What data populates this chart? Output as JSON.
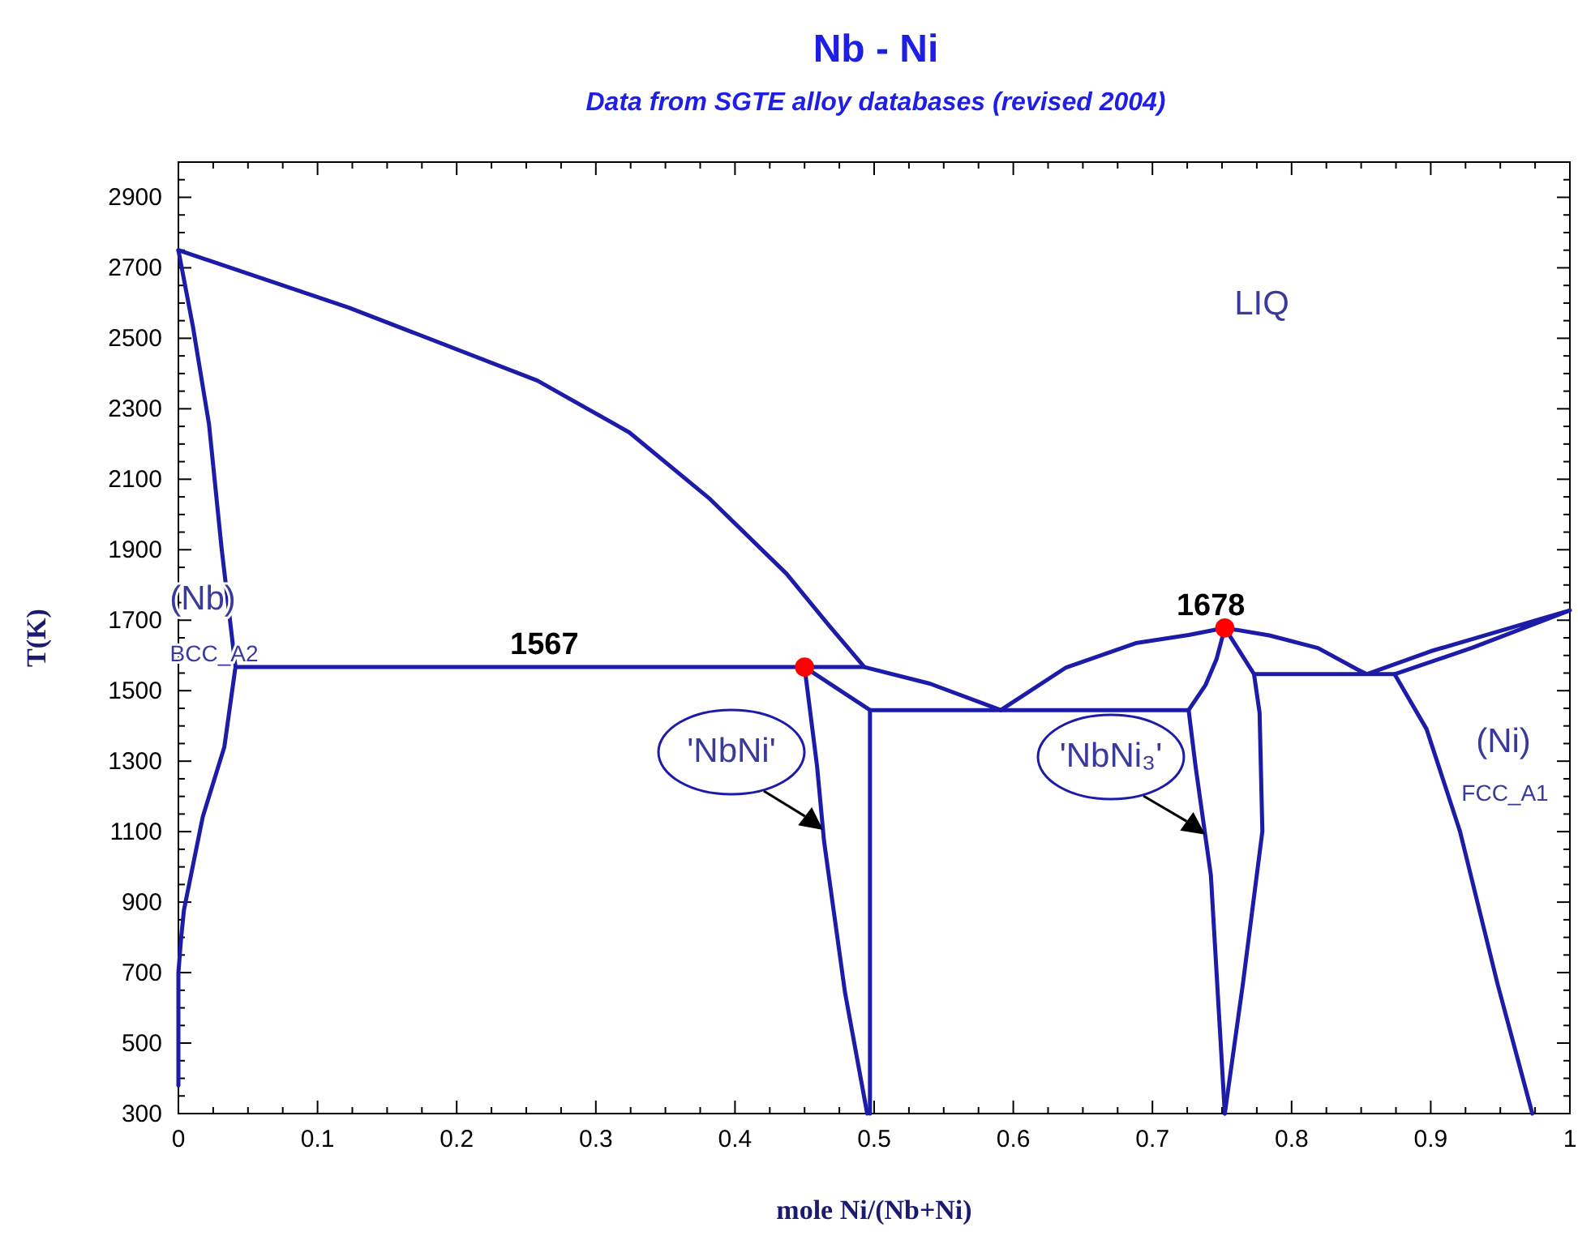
{
  "chart_data": {
    "type": "line",
    "title": "Nb - Ni",
    "subtitle": "Data from SGTE alloy databases (revised 2004)",
    "xlabel": "mole Ni/(Nb+Ni)",
    "ylabel": "T(K)",
    "xlim": [
      0,
      1
    ],
    "ylim": [
      300,
      3000
    ],
    "xticks": [
      0,
      {
        "value": 0.025,
        "label": null
      },
      {
        "value": 0.05,
        "label": null
      },
      {
        "value": 0.075,
        "label": null
      },
      0.1,
      {
        "value": 0.125,
        "label": null
      },
      {
        "value": 0.15,
        "label": null
      },
      {
        "value": 0.175,
        "label": null
      },
      0.2,
      {
        "value": 0.225,
        "label": null
      },
      {
        "value": 0.25,
        "label": null
      },
      {
        "value": 0.275,
        "label": null
      },
      0.3,
      {
        "value": 0.325,
        "label": null
      },
      {
        "value": 0.35,
        "label": null
      },
      {
        "value": 0.375,
        "label": null
      },
      0.4,
      {
        "value": 0.425,
        "label": null
      },
      {
        "value": 0.45,
        "label": null
      },
      {
        "value": 0.475,
        "label": null
      },
      0.5,
      {
        "value": 0.525,
        "label": null
      },
      {
        "value": 0.55,
        "label": null
      },
      {
        "value": 0.575,
        "label": null
      },
      0.6,
      {
        "value": 0.625,
        "label": null
      },
      {
        "value": 0.65,
        "label": null
      },
      {
        "value": 0.675,
        "label": null
      },
      0.7,
      {
        "value": 0.725,
        "label": null
      },
      {
        "value": 0.75,
        "label": null
      },
      {
        "value": 0.775,
        "label": null
      },
      0.8,
      {
        "value": 0.825,
        "label": null
      },
      {
        "value": 0.85,
        "label": null
      },
      {
        "value": 0.875,
        "label": null
      },
      0.9,
      {
        "value": 0.925,
        "label": null
      },
      {
        "value": 0.95,
        "label": null
      },
      {
        "value": 0.975,
        "label": null
      },
      1
    ],
    "yticks": [
      300,
      {
        "value": 350,
        "label": null
      },
      {
        "value": 400,
        "label": null
      },
      {
        "value": 450,
        "label": null
      },
      500,
      {
        "value": 550,
        "label": null
      },
      {
        "value": 600,
        "label": null
      },
      {
        "value": 650,
        "label": null
      },
      700,
      {
        "value": 750,
        "label": null
      },
      {
        "value": 800,
        "label": null
      },
      {
        "value": 850,
        "label": null
      },
      900,
      {
        "value": 950,
        "label": null
      },
      {
        "value": 1000,
        "label": null
      },
      {
        "value": 1050,
        "label": null
      },
      1100,
      {
        "value": 1150,
        "label": null
      },
      {
        "value": 1200,
        "label": null
      },
      {
        "value": 1250,
        "label": null
      },
      1300,
      {
        "value": 1350,
        "label": null
      },
      {
        "value": 1400,
        "label": null
      },
      {
        "value": 1450,
        "label": null
      },
      1500,
      {
        "value": 1550,
        "label": null
      },
      {
        "value": 1600,
        "label": null
      },
      {
        "value": 1650,
        "label": null
      },
      1700,
      {
        "value": 1750,
        "label": null
      },
      {
        "value": 1800,
        "label": null
      },
      {
        "value": 1850,
        "label": null
      },
      1900,
      {
        "value": 1950,
        "label": null
      },
      {
        "value": 2000,
        "label": null
      },
      {
        "value": 2050,
        "label": null
      },
      2100,
      {
        "value": 2150,
        "label": null
      },
      {
        "value": 2200,
        "label": null
      },
      {
        "value": 2250,
        "label": null
      },
      2300,
      {
        "value": 2350,
        "label": null
      },
      {
        "value": 2400,
        "label": null
      },
      {
        "value": 2450,
        "label": null
      },
      2500,
      {
        "value": 2550,
        "label": null
      },
      {
        "value": 2600,
        "label": null
      },
      {
        "value": 2650,
        "label": null
      },
      2700,
      {
        "value": 2750,
        "label": null
      },
      {
        "value": 2800,
        "label": null
      },
      {
        "value": 2850,
        "label": null
      },
      2900,
      {
        "value": 2950,
        "label": null
      }
    ],
    "grid": false,
    "line_style": "solid",
    "series": [
      {
        "color": "#1c1ca8",
        "x": [
          0,
          0.1225,
          0.258,
          0.324,
          0.382,
          0.437,
          0.468,
          0.493,
          0.54,
          0.591
        ],
        "values": [
          2750,
          2587,
          2380,
          2233,
          2044,
          1832,
          1683,
          1567,
          1520,
          1445
        ]
      },
      {
        "color": "#1c1ca8",
        "x": [
          0,
          0.0105,
          0.022,
          0.031,
          0.041,
          0.033,
          0.0175,
          0.004,
          0.002,
          0,
          0
        ],
        "values": [
          2750,
          2532,
          2256,
          1906,
          1567,
          1340,
          1142,
          878,
          800,
          700,
          380
        ]
      },
      {
        "color": "#1c1ca8",
        "x": [
          0.041,
          0.493
        ],
        "values": [
          1567,
          1567
        ]
      },
      {
        "color": "#1c1ca8",
        "x": [
          0.45,
          0.459,
          0.464,
          0.479,
          0.495
        ],
        "values": [
          1567,
          1285,
          1073,
          645,
          300
        ]
      },
      {
        "color": "#1c1ca8",
        "x": [
          0.45,
          0.495,
          0.497,
          0.497
        ],
        "values": [
          1567,
          1450,
          1445,
          300
        ]
      },
      {
        "color": "#1c1ca8",
        "x": [
          0.497,
          0.726
        ],
        "values": [
          1445,
          1445
        ]
      },
      {
        "color": "#1c1ca8",
        "x": [
          0.591,
          0.638,
          0.688,
          0.726,
          0.752,
          0.784,
          0.819,
          0.847,
          0.854,
          0.9,
          0.95,
          1,
          0.93,
          0.874,
          0.854,
          0.773
        ],
        "values": [
          1445,
          1566,
          1635,
          1658,
          1678,
          1657,
          1621,
          1561,
          1547,
          1612,
          1670,
          1728,
          1622,
          1547,
          1547,
          1547
        ]
      },
      {
        "color": "#1c1ca8",
        "x": [
          0.752,
          0.746,
          0.738,
          0.726,
          0.731,
          0.742,
          0.752
        ],
        "values": [
          1678,
          1589,
          1515,
          1445,
          1285,
          976,
          300
        ]
      },
      {
        "color": "#1c1ca8",
        "x": [
          0.752,
          0.773,
          0.777,
          0.779,
          0.765,
          0.752
        ],
        "values": [
          1678,
          1547,
          1437,
          1101,
          668,
          300
        ]
      },
      {
        "color": "#1c1ca8",
        "x": [
          0.874,
          0.897,
          0.921,
          0.948,
          0.973
        ],
        "values": [
          1547,
          1391,
          1101,
          668,
          300
        ]
      },
      {
        "type": "scatter",
        "marker": "circle",
        "color": "#ff0000",
        "x": [
          0.45,
          0.752
        ],
        "values": [
          1567,
          1678
        ]
      }
    ],
    "annotations": [
      {
        "text": "1567",
        "x": 0.263,
        "y": 1567
      },
      {
        "text": "1678",
        "x": 0.742,
        "y": 1678
      },
      "LIQ",
      "(Nb)",
      "BCC_A2",
      "(Ni)",
      "FCC_A1",
      {
        "text": "'NbNi'",
        "x": 0.4633,
        "y": 1105
      },
      {
        "text": "'NbNi₃'",
        "x": 0.7379,
        "y": 1092
      }
    ]
  }
}
